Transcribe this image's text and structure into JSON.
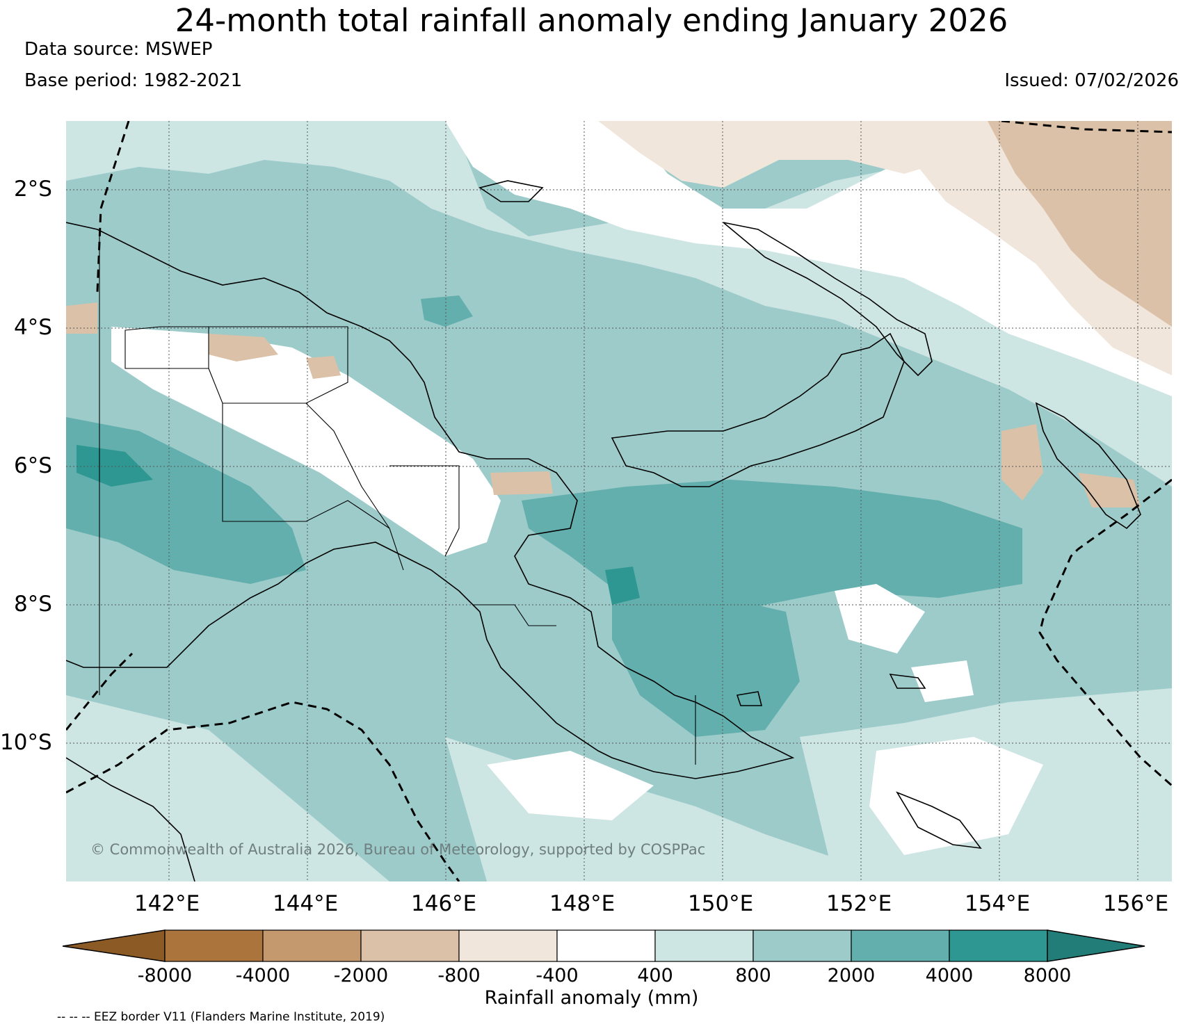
{
  "title": "24-month total rainfall anomaly ending January 2026",
  "data_source": "Data source: MSWEP",
  "base_period": "Base period: 1982-2021",
  "issued": "Issued: 07/02/2026",
  "copyright": "© Commonwealth of Australia 2026, Bureau of Meteorology, supported by COSPPac",
  "map": {
    "lat_labels": [
      "2°S",
      "4°S",
      "6°S",
      "8°S",
      "10°S"
    ],
    "lon_labels": [
      "142°E",
      "144°E",
      "146°E",
      "148°E",
      "150°E",
      "152°E",
      "154°E",
      "156°E"
    ]
  },
  "colorbar": {
    "label": "Rainfall anomaly (mm)",
    "ticks": [
      "-8000",
      "-4000",
      "-2000",
      "-800",
      "-400",
      "400",
      "800",
      "2000",
      "4000",
      "8000"
    ],
    "colors": {
      "below_min": "#8c5a24",
      "bins": [
        "#ab743c",
        "#c4996d",
        "#dbc1a7",
        "#f1e6dc",
        "#ffffff",
        "#cde5e3",
        "#9ccbca",
        "#63afad",
        "#2f9792"
      ],
      "above_max": "#227d79"
    }
  },
  "footnote": "-- -- -- EEZ border V11 (Flanders Marine Institute, 2019)"
}
